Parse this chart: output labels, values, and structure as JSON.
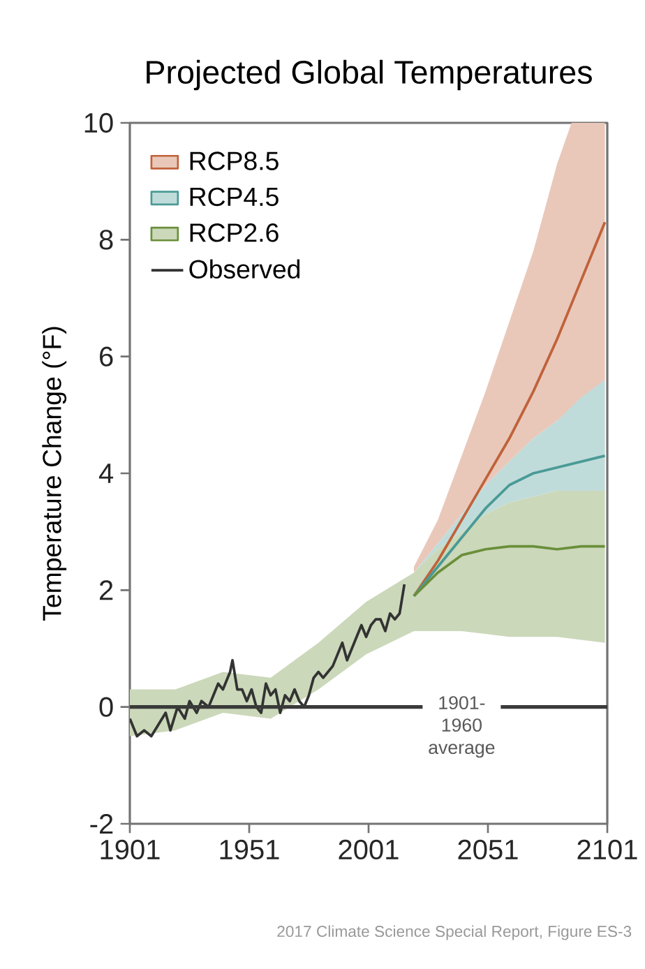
{
  "chart_data": {
    "type": "line",
    "title": "Projected Global Temperatures",
    "ylabel": "Temperature Change (°F)",
    "xlim": [
      1901,
      2101
    ],
    "xticks": [
      1901,
      1951,
      2001,
      2051,
      2101
    ],
    "ylim": [
      -2,
      10
    ],
    "yticks": [
      -2,
      0,
      2,
      4,
      6,
      8,
      10
    ],
    "grid": false,
    "legend": "top left",
    "line_style": "solid",
    "marker": "none",
    "annotations": [
      "2017 Climate Science Special Report, Figure ES-3"
    ],
    "ref_lines": [
      {
        "axis": "y",
        "value": 0,
        "label": "1901-1960 average",
        "color": "#3a3a3a"
      }
    ],
    "series": [
      {
        "name": "RCP8.5",
        "color": "#c0623a",
        "x": [
          2020,
          2030,
          2040,
          2050,
          2060,
          2070,
          2080,
          2086,
          2100
        ],
        "values": [
          1.9,
          2.5,
          3.2,
          3.9,
          4.6,
          5.4,
          6.3,
          6.9,
          8.3
        ],
        "lower": [
          2.3,
          2.8,
          3.3,
          3.8,
          4.2,
          4.6,
          4.9,
          5.1,
          5.6
        ],
        "upper": [
          2.4,
          3.2,
          4.3,
          5.4,
          6.6,
          7.8,
          9.3,
          10,
          10
        ]
      },
      {
        "name": "RCP4.5",
        "color": "#4a9a96",
        "x": [
          2020,
          2030,
          2040,
          2050,
          2060,
          2070,
          2080,
          2090,
          2100
        ],
        "values": [
          1.9,
          2.4,
          2.9,
          3.4,
          3.8,
          4.0,
          4.1,
          4.2,
          4.3
        ],
        "lower": [
          2.3,
          2.7,
          3.0,
          3.3,
          3.5,
          3.6,
          3.7,
          3.7,
          3.7
        ],
        "upper": [
          2.3,
          2.8,
          3.3,
          3.8,
          4.2,
          4.6,
          4.9,
          5.3,
          5.6
        ]
      },
      {
        "name": "RCP2.6",
        "color": "#6a8f3a",
        "x": [
          1901,
          1920,
          1940,
          1960,
          1980,
          2000,
          2020,
          2030,
          2040,
          2050,
          2060,
          2070,
          2080,
          2090,
          2100
        ],
        "values": [
          null,
          null,
          null,
          null,
          null,
          null,
          1.9,
          2.3,
          2.6,
          2.7,
          2.75,
          2.75,
          2.7,
          2.75,
          2.75
        ],
        "lower": [
          -0.5,
          -0.4,
          -0.1,
          -0.2,
          0.3,
          0.9,
          1.3,
          1.3,
          1.3,
          1.25,
          1.2,
          1.2,
          1.2,
          1.15,
          1.1
        ],
        "upper": [
          0.3,
          0.3,
          0.6,
          0.5,
          1.1,
          1.8,
          2.3,
          2.7,
          3.0,
          3.3,
          3.5,
          3.6,
          3.7,
          3.7,
          3.7
        ]
      },
      {
        "name": "Observed",
        "color": "#333333",
        "x": [
          1901,
          1904,
          1907,
          1910,
          1913,
          1916,
          1918,
          1921,
          1924,
          1926,
          1929,
          1931,
          1934,
          1936,
          1938,
          1940,
          1943,
          1944,
          1946,
          1948,
          1950,
          1952,
          1954,
          1956,
          1958,
          1960,
          1962,
          1964,
          1966,
          1968,
          1970,
          1972,
          1974,
          1976,
          1978,
          1980,
          1982,
          1984,
          1986,
          1988,
          1990,
          1992,
          1994,
          1996,
          1998,
          2000,
          2002,
          2004,
          2006,
          2008,
          2010,
          2012,
          2014,
          2016
        ],
        "values": [
          -0.2,
          -0.5,
          -0.4,
          -0.5,
          -0.3,
          -0.1,
          -0.4,
          0.0,
          -0.2,
          0.1,
          -0.1,
          0.1,
          0.0,
          0.2,
          0.4,
          0.3,
          0.6,
          0.8,
          0.3,
          0.3,
          0.1,
          0.3,
          0.0,
          -0.1,
          0.4,
          0.2,
          0.3,
          -0.1,
          0.2,
          0.1,
          0.3,
          0.1,
          0.0,
          0.2,
          0.5,
          0.6,
          0.5,
          0.6,
          0.7,
          0.9,
          1.1,
          0.8,
          1.0,
          1.2,
          1.4,
          1.2,
          1.4,
          1.5,
          1.5,
          1.3,
          1.6,
          1.5,
          1.6,
          2.1
        ]
      }
    ]
  }
}
